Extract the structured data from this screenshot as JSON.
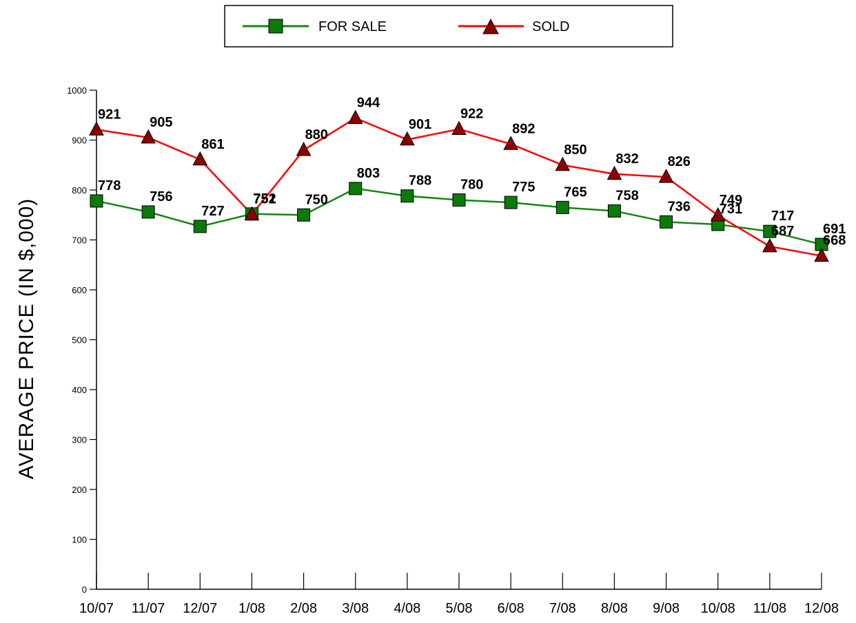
{
  "chart_data": {
    "type": "line",
    "categories": [
      "10/07",
      "11/07",
      "12/07",
      "1/08",
      "2/08",
      "3/08",
      "4/08",
      "5/08",
      "6/08",
      "7/08",
      "8/08",
      "9/08",
      "10/08",
      "11/08",
      "12/08"
    ],
    "series": [
      {
        "name": "FOR SALE",
        "color": "#138513",
        "marker": "square",
        "values": [
          778,
          756,
          727,
          752,
          750,
          803,
          788,
          780,
          775,
          765,
          758,
          736,
          731,
          717,
          691
        ]
      },
      {
        "name": "SOLD",
        "color": "#ff0000",
        "marker": "triangle",
        "values": [
          921,
          905,
          861,
          751,
          880,
          944,
          901,
          922,
          892,
          850,
          832,
          826,
          749,
          687,
          668
        ]
      }
    ],
    "ylabel": "AVERAGE PRICE (IN $,000)",
    "xlabel": "",
    "ylim": [
      0,
      1000
    ],
    "yticks": [
      0,
      100,
      200,
      300,
      400,
      500,
      600,
      700,
      800,
      900,
      1000
    ],
    "legend_position": "top",
    "grid": false,
    "marker_fill_colors": {
      "square": "#0a7a0a",
      "triangle": "#8b0000"
    }
  },
  "legend": {
    "for_sale_label": "FOR SALE",
    "sold_label": "SOLD"
  },
  "axis": {
    "ylabel": "AVERAGE PRICE (IN $,000)"
  }
}
